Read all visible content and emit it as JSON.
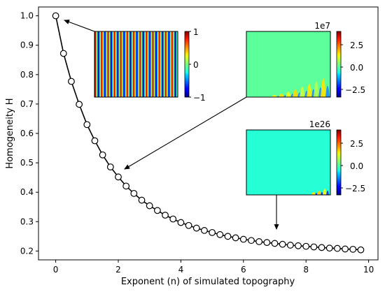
{
  "chart_data": {
    "type": "line",
    "title": "",
    "xlabel": "Exponent (n) of simulated topography",
    "ylabel": "Homogeneity H",
    "xlim": [
      -0.55,
      10.3
    ],
    "ylim": [
      0.17,
      1.03
    ],
    "xticks": [
      0,
      2,
      4,
      6,
      8,
      10
    ],
    "yticks": [
      0.2,
      0.3,
      0.4,
      0.5,
      0.6,
      0.7,
      0.8,
      0.9,
      1.0
    ],
    "xtick_labels": [
      "0",
      "2",
      "4",
      "6",
      "8",
      "10"
    ],
    "ytick_labels": [
      "0.2",
      "0.3",
      "0.4",
      "0.5",
      "0.6",
      "0.7",
      "0.8",
      "0.9",
      "1.0"
    ],
    "grid": false,
    "marker": "open-circle",
    "line_color": "#000000",
    "series": [
      {
        "x": [
          0,
          0.25,
          0.5,
          0.75,
          1.0,
          1.25,
          1.5,
          1.75,
          2.0,
          2.25,
          2.5,
          2.75,
          3.0,
          3.25,
          3.5,
          3.75,
          4.0,
          4.25,
          4.5,
          4.75,
          5.0,
          5.25,
          5.5,
          5.75,
          6.0,
          6.25,
          6.5,
          6.75,
          7.0,
          7.25,
          7.5,
          7.75,
          8.0,
          8.25,
          8.5,
          8.75,
          9.0,
          9.25,
          9.5,
          9.75
        ],
        "y": [
          1.0,
          0.872,
          0.777,
          0.699,
          0.63,
          0.575,
          0.527,
          0.486,
          0.452,
          0.421,
          0.396,
          0.373,
          0.354,
          0.338,
          0.322,
          0.309,
          0.297,
          0.287,
          0.278,
          0.27,
          0.263,
          0.256,
          0.25,
          0.245,
          0.24,
          0.236,
          0.232,
          0.229,
          0.226,
          0.223,
          0.22,
          0.218,
          0.216,
          0.214,
          0.212,
          0.21,
          0.209,
          0.207,
          0.206,
          0.204
        ]
      }
    ],
    "insets": [
      {
        "name": "stripes",
        "colorbar_ticks": [
          "1",
          "0",
          "−1"
        ],
        "colorbar_exponent": "",
        "arrow_target": {
          "x": 0.25,
          "y": 0.985
        }
      },
      {
        "name": "n2",
        "colorbar_ticks": [
          "2.5",
          "0.0",
          "−2.5"
        ],
        "colorbar_exponent": "1e7",
        "arrow_target": {
          "x": 2.0,
          "y": 0.452
        }
      },
      {
        "name": "n7",
        "colorbar_ticks": [
          "2.5",
          "0.0",
          "−2.5"
        ],
        "colorbar_exponent": "1e26",
        "arrow_target": {
          "x": 7.0,
          "y": 0.226
        }
      }
    ],
    "colormap": "jet"
  }
}
